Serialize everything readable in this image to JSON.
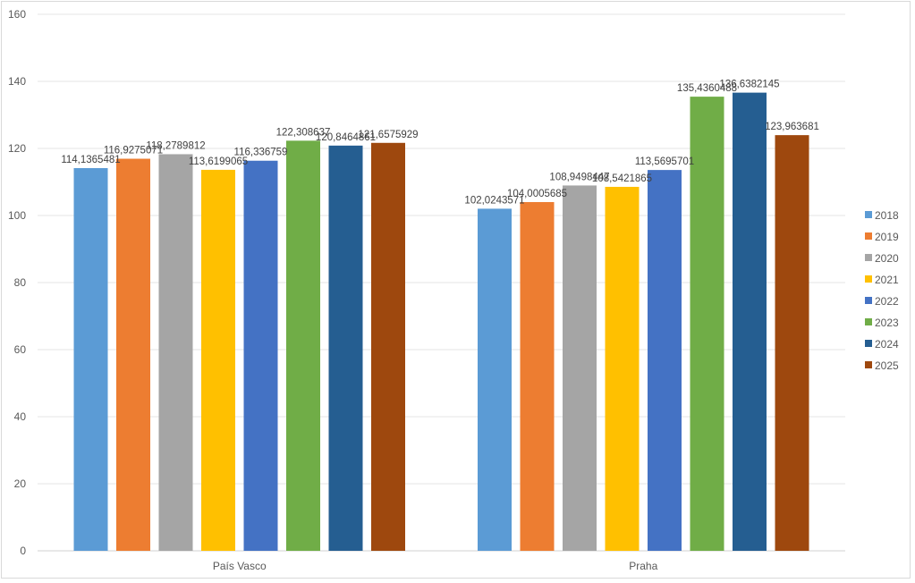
{
  "chart_data": {
    "type": "bar",
    "title": "",
    "xlabel": "",
    "ylabel": "",
    "ylim": [
      0,
      160
    ],
    "yticks": [
      0,
      20,
      40,
      60,
      80,
      100,
      120,
      140,
      160
    ],
    "grid": true,
    "legend_position": "right",
    "categories": [
      "País Vasco",
      "Praha"
    ],
    "series": [
      {
        "name": "2018",
        "color": "#5b9bd5",
        "values": [
          114.1365481,
          102.0243571
        ],
        "labels": [
          "114,1365481",
          "102,0243571"
        ]
      },
      {
        "name": "2019",
        "color": "#ed7d31",
        "values": [
          116.9275071,
          104.0005685
        ],
        "labels": [
          "116,9275071",
          "104,0005685"
        ]
      },
      {
        "name": "2020",
        "color": "#a5a5a5",
        "values": [
          118.2789812,
          108.9498447
        ],
        "labels": [
          "118,2789812",
          "108,9498447"
        ]
      },
      {
        "name": "2021",
        "color": "#ffc000",
        "values": [
          113.6199065,
          108.5421865
        ],
        "labels": [
          "113,6199065",
          "108,5421865"
        ]
      },
      {
        "name": "2022",
        "color": "#4472c4",
        "values": [
          116.336759,
          113.5695701
        ],
        "labels": [
          "116,336759",
          "113,5695701"
        ]
      },
      {
        "name": "2023",
        "color": "#70ad47",
        "values": [
          122.308637,
          135.4360488
        ],
        "labels": [
          "122,308637",
          "135,4360488"
        ]
      },
      {
        "name": "2024",
        "color": "#255e91",
        "values": [
          120.8464861,
          136.6382145
        ],
        "labels": [
          "120,8464861",
          "136,6382145"
        ]
      },
      {
        "name": "2025",
        "color": "#9e480e",
        "values": [
          121.6575929,
          123.963681
        ],
        "labels": [
          "121,6575929",
          "123,963681"
        ]
      }
    ]
  }
}
